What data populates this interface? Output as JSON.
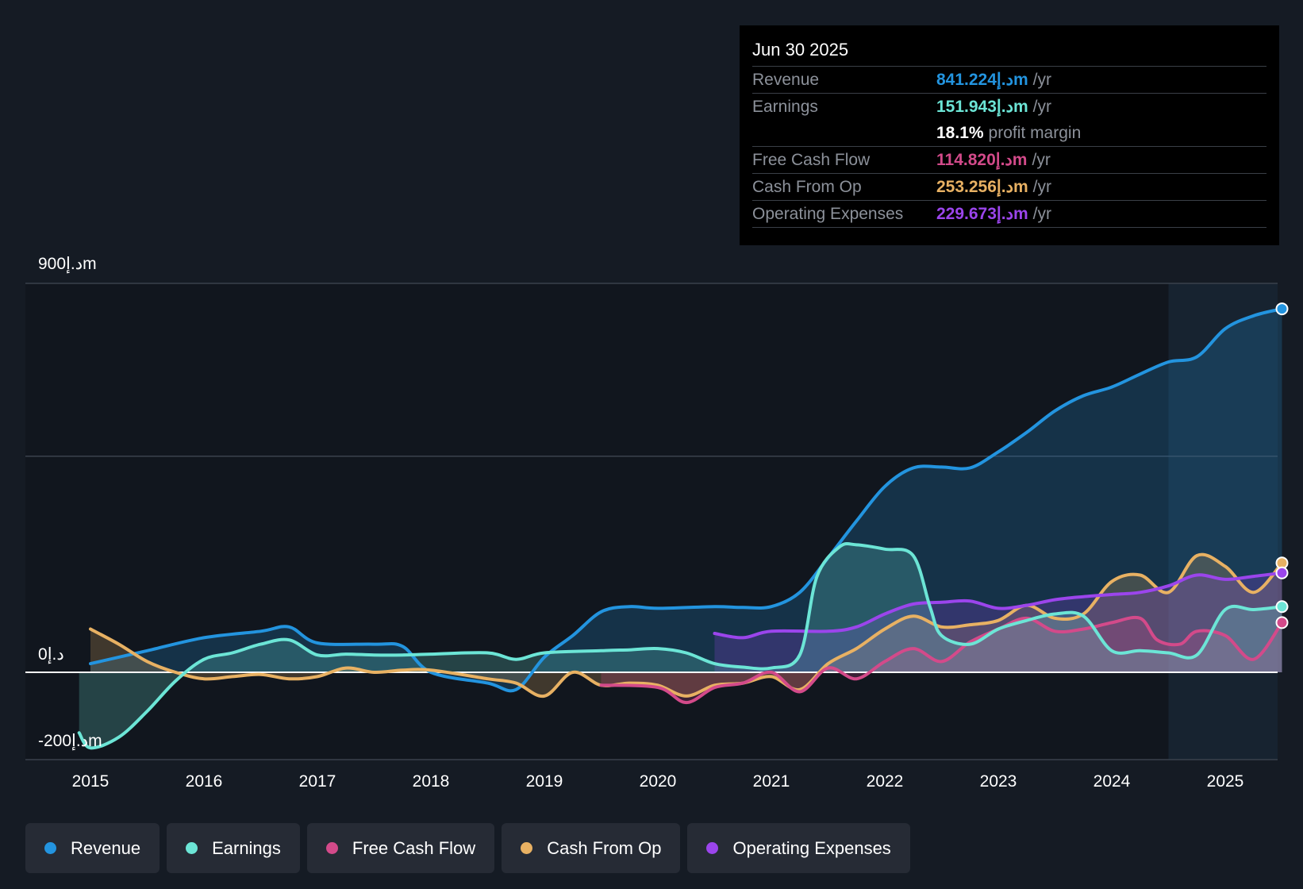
{
  "tooltip": {
    "date": "Jun 30 2025",
    "rows": [
      {
        "label": "Revenue",
        "value": "841.224د.إm",
        "unit": "/yr",
        "color": "#2394df"
      },
      {
        "label": "Earnings",
        "value": "151.943د.إm",
        "unit": "/yr",
        "color": "#6ce5d6"
      },
      {
        "label": "",
        "value": "18.1%",
        "unit": "profit margin",
        "color": "#ffffff"
      },
      {
        "label": "Free Cash Flow",
        "value": "114.820د.إm",
        "unit": "/yr",
        "color": "#d34a8a"
      },
      {
        "label": "Cash From Op",
        "value": "253.256د.إm",
        "unit": "/yr",
        "color": "#e8b163"
      },
      {
        "label": "Operating Expenses",
        "value": "229.673د.إm",
        "unit": "/yr",
        "color": "#9b45ec"
      }
    ]
  },
  "legend": [
    {
      "label": "Revenue",
      "color": "#2394df"
    },
    {
      "label": "Earnings",
      "color": "#6ce5d6"
    },
    {
      "label": "Free Cash Flow",
      "color": "#d34a8a"
    },
    {
      "label": "Cash From Op",
      "color": "#e8b163"
    },
    {
      "label": "Operating Expenses",
      "color": "#9b45ec"
    }
  ],
  "chart_data": {
    "type": "line",
    "title": "",
    "ylim": [
      -200,
      900
    ],
    "y_tick_labels": [
      "900د.إm",
      "0د.إ",
      "-200د.إm"
    ],
    "y_ticks": [
      900,
      0,
      -200
    ],
    "x_tick_labels": [
      "2015",
      "2016",
      "2017",
      "2018",
      "2019",
      "2020",
      "2021",
      "2022",
      "2023",
      "2024",
      "2025"
    ],
    "x_ticks": [
      2015,
      2016,
      2017,
      2018,
      2019,
      2020,
      2021,
      2022,
      2023,
      2024,
      2025
    ],
    "xlim": [
      2014.43,
      2025.5
    ],
    "forecast_start": 2024.5,
    "series": [
      {
        "name": "Revenue",
        "color": "#2394df",
        "points": [
          [
            2015.0,
            20
          ],
          [
            2015.5,
            50
          ],
          [
            2016.0,
            80
          ],
          [
            2016.5,
            95
          ],
          [
            2016.75,
            105
          ],
          [
            2017.0,
            68
          ],
          [
            2017.5,
            65
          ],
          [
            2017.75,
            60
          ],
          [
            2018.0,
            0
          ],
          [
            2018.5,
            -25
          ],
          [
            2018.75,
            -40
          ],
          [
            2019.0,
            35
          ],
          [
            2019.25,
            85
          ],
          [
            2019.5,
            140
          ],
          [
            2019.75,
            152
          ],
          [
            2020.0,
            148
          ],
          [
            2020.5,
            152
          ],
          [
            2020.75,
            150
          ],
          [
            2021.0,
            152
          ],
          [
            2021.25,
            185
          ],
          [
            2021.5,
            265
          ],
          [
            2021.75,
            350
          ],
          [
            2022.0,
            430
          ],
          [
            2022.25,
            473
          ],
          [
            2022.5,
            475
          ],
          [
            2022.75,
            473
          ],
          [
            2023.0,
            510
          ],
          [
            2023.25,
            555
          ],
          [
            2023.5,
            605
          ],
          [
            2023.75,
            640
          ],
          [
            2024.0,
            660
          ],
          [
            2024.25,
            690
          ],
          [
            2024.5,
            718
          ],
          [
            2024.75,
            730
          ],
          [
            2025.0,
            795
          ],
          [
            2025.25,
            825
          ],
          [
            2025.5,
            841
          ]
        ]
      },
      {
        "name": "Earnings",
        "color": "#6ce5d6",
        "points": [
          [
            2014.9,
            -140
          ],
          [
            2015.0,
            -175
          ],
          [
            2015.25,
            -150
          ],
          [
            2015.5,
            -90
          ],
          [
            2015.75,
            -20
          ],
          [
            2016.0,
            30
          ],
          [
            2016.25,
            45
          ],
          [
            2016.5,
            65
          ],
          [
            2016.75,
            75
          ],
          [
            2017.0,
            40
          ],
          [
            2017.25,
            42
          ],
          [
            2017.5,
            40
          ],
          [
            2017.75,
            40
          ],
          [
            2018.0,
            42
          ],
          [
            2018.5,
            45
          ],
          [
            2018.75,
            30
          ],
          [
            2019.0,
            45
          ],
          [
            2019.5,
            50
          ],
          [
            2019.75,
            52
          ],
          [
            2020.0,
            55
          ],
          [
            2020.25,
            45
          ],
          [
            2020.5,
            20
          ],
          [
            2020.75,
            12
          ],
          [
            2021.0,
            10
          ],
          [
            2021.25,
            40
          ],
          [
            2021.4,
            220
          ],
          [
            2021.6,
            290
          ],
          [
            2021.75,
            295
          ],
          [
            2022.0,
            285
          ],
          [
            2022.25,
            270
          ],
          [
            2022.4,
            150
          ],
          [
            2022.5,
            85
          ],
          [
            2022.75,
            65
          ],
          [
            2023.0,
            100
          ],
          [
            2023.25,
            120
          ],
          [
            2023.5,
            135
          ],
          [
            2023.75,
            130
          ],
          [
            2024.0,
            50
          ],
          [
            2024.25,
            50
          ],
          [
            2024.5,
            45
          ],
          [
            2024.75,
            40
          ],
          [
            2025.0,
            145
          ],
          [
            2025.25,
            145
          ],
          [
            2025.5,
            152
          ]
        ]
      },
      {
        "name": "Free Cash Flow",
        "color": "#d34a8a",
        "points": [
          [
            2019.5,
            -30
          ],
          [
            2020.0,
            -35
          ],
          [
            2020.25,
            -70
          ],
          [
            2020.5,
            -35
          ],
          [
            2020.75,
            -25
          ],
          [
            2021.0,
            0
          ],
          [
            2021.25,
            -45
          ],
          [
            2021.5,
            10
          ],
          [
            2021.75,
            -15
          ],
          [
            2022.0,
            25
          ],
          [
            2022.25,
            55
          ],
          [
            2022.5,
            25
          ],
          [
            2022.75,
            70
          ],
          [
            2023.0,
            100
          ],
          [
            2023.25,
            125
          ],
          [
            2023.5,
            95
          ],
          [
            2023.75,
            100
          ],
          [
            2024.0,
            115
          ],
          [
            2024.25,
            125
          ],
          [
            2024.4,
            75
          ],
          [
            2024.6,
            65
          ],
          [
            2024.75,
            95
          ],
          [
            2025.0,
            85
          ],
          [
            2025.25,
            30
          ],
          [
            2025.5,
            115
          ]
        ]
      },
      {
        "name": "Cash From Op",
        "color": "#e8b163",
        "points": [
          [
            2015.0,
            100
          ],
          [
            2015.25,
            65
          ],
          [
            2015.5,
            25
          ],
          [
            2015.75,
            0
          ],
          [
            2016.0,
            -15
          ],
          [
            2016.25,
            -10
          ],
          [
            2016.5,
            -5
          ],
          [
            2016.75,
            -15
          ],
          [
            2017.0,
            -10
          ],
          [
            2017.25,
            10
          ],
          [
            2017.5,
            0
          ],
          [
            2017.75,
            5
          ],
          [
            2018.0,
            5
          ],
          [
            2018.5,
            -15
          ],
          [
            2018.75,
            -25
          ],
          [
            2019.0,
            -55
          ],
          [
            2019.25,
            0
          ],
          [
            2019.5,
            -30
          ],
          [
            2019.75,
            -25
          ],
          [
            2020.0,
            -30
          ],
          [
            2020.25,
            -55
          ],
          [
            2020.5,
            -30
          ],
          [
            2020.75,
            -25
          ],
          [
            2021.0,
            -10
          ],
          [
            2021.25,
            -40
          ],
          [
            2021.5,
            20
          ],
          [
            2021.75,
            55
          ],
          [
            2022.0,
            100
          ],
          [
            2022.25,
            130
          ],
          [
            2022.5,
            105
          ],
          [
            2022.75,
            110
          ],
          [
            2023.0,
            120
          ],
          [
            2023.25,
            155
          ],
          [
            2023.5,
            125
          ],
          [
            2023.75,
            135
          ],
          [
            2024.0,
            210
          ],
          [
            2024.25,
            225
          ],
          [
            2024.5,
            185
          ],
          [
            2024.75,
            270
          ],
          [
            2025.0,
            245
          ],
          [
            2025.25,
            185
          ],
          [
            2025.5,
            253
          ]
        ]
      },
      {
        "name": "Operating Expenses",
        "color": "#9b45ec",
        "points": [
          [
            2020.5,
            90
          ],
          [
            2020.75,
            80
          ],
          [
            2021.0,
            95
          ],
          [
            2021.5,
            95
          ],
          [
            2021.75,
            105
          ],
          [
            2022.0,
            135
          ],
          [
            2022.25,
            158
          ],
          [
            2022.5,
            162
          ],
          [
            2022.75,
            165
          ],
          [
            2023.0,
            148
          ],
          [
            2023.25,
            155
          ],
          [
            2023.5,
            168
          ],
          [
            2023.75,
            175
          ],
          [
            2024.0,
            180
          ],
          [
            2024.25,
            185
          ],
          [
            2024.5,
            200
          ],
          [
            2024.75,
            225
          ],
          [
            2025.0,
            215
          ],
          [
            2025.25,
            222
          ],
          [
            2025.5,
            230
          ]
        ]
      }
    ]
  }
}
